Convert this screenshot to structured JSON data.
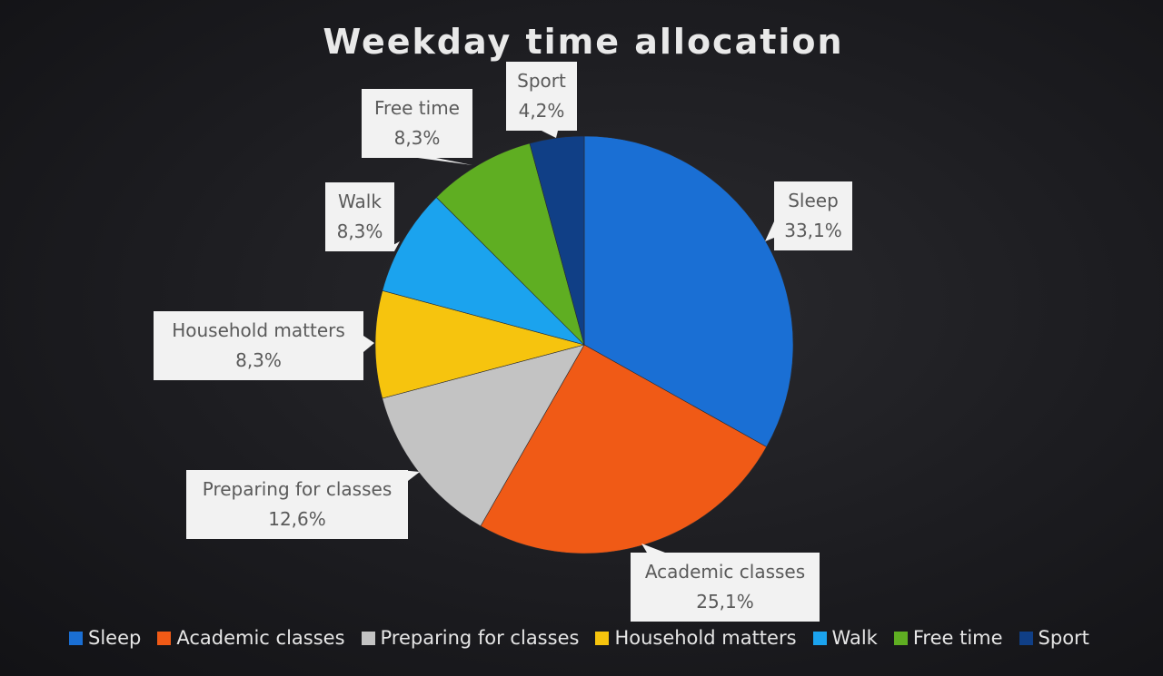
{
  "chart_data": {
    "type": "pie",
    "title": "Weekday time allocation",
    "slices": [
      {
        "label": "Sleep",
        "value": 33.1,
        "value_label": "33,1%",
        "color": "#1a6fd4"
      },
      {
        "label": "Academic classes",
        "value": 25.1,
        "value_label": "25,1%",
        "color": "#f05a16"
      },
      {
        "label": "Preparing for classes",
        "value": 12.6,
        "value_label": "12,6%",
        "color": "#c3c3c3"
      },
      {
        "label": "Household matters",
        "value": 8.3,
        "value_label": "8,3%",
        "color": "#f6c40e"
      },
      {
        "label": "Walk",
        "value": 8.3,
        "value_label": "8,3%",
        "color": "#1ba3ee"
      },
      {
        "label": "Free time",
        "value": 8.3,
        "value_label": "8,3%",
        "color": "#5fae22"
      },
      {
        "label": "Sport",
        "value": 4.2,
        "value_label": "4,2%",
        "color": "#103f86"
      }
    ],
    "legend_position": "bottom",
    "data_labels": "callouts"
  }
}
